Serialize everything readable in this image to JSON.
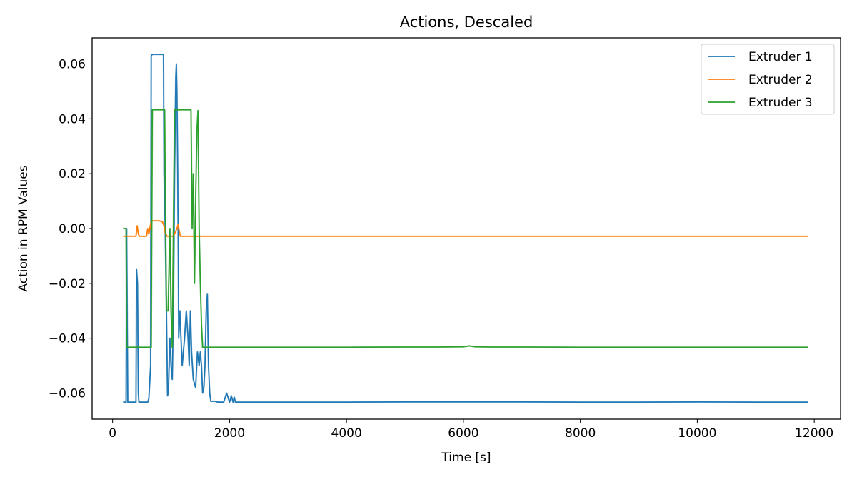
{
  "chart_data": {
    "type": "line",
    "title": "Actions, Descaled",
    "xlabel": "Time [s]",
    "ylabel": "Action in RPM Values",
    "xlim": [
      -350,
      12450
    ],
    "ylim": [
      -0.0695,
      0.0695
    ],
    "xticks": [
      0,
      2000,
      4000,
      6000,
      8000,
      10000,
      12000
    ],
    "yticks": [
      -0.06,
      -0.04,
      -0.02,
      0.0,
      0.02,
      0.04,
      0.06
    ],
    "xtick_labels": [
      "0",
      "2000",
      "4000",
      "6000",
      "8000",
      "10000",
      "12000"
    ],
    "ytick_labels": [
      "−0.06",
      "−0.04",
      "−0.02",
      "0.00",
      "0.02",
      "0.04",
      "0.06"
    ],
    "grid": false,
    "legend_position": "top-right",
    "series": [
      {
        "name": "Extruder 1",
        "color": "#1f77b4",
        "x": [
          180,
          230,
          240,
          260,
          400,
          410,
          425,
          440,
          450,
          460,
          490,
          520,
          560,
          600,
          620,
          650,
          660,
          680,
          700,
          750,
          800,
          850,
          870,
          880,
          900,
          920,
          940,
          950,
          960,
          980,
          1000,
          1020,
          1040,
          1060,
          1080,
          1090,
          1100,
          1110,
          1120,
          1130,
          1150,
          1170,
          1190,
          1210,
          1230,
          1260,
          1290,
          1310,
          1330,
          1350,
          1380,
          1420,
          1450,
          1480,
          1500,
          1520,
          1540,
          1560,
          1580,
          1600,
          1620,
          1640,
          1660,
          1680,
          1700,
          1750,
          1800,
          1850,
          1900,
          1950,
          1980,
          2000,
          2030,
          2060,
          2080,
          2100,
          2200,
          3000,
          4000,
          5000,
          6000,
          7000,
          8000,
          9000,
          10000,
          11000,
          11900
        ],
        "y": [
          -0.0633,
          -0.0633,
          0.0,
          -0.0633,
          -0.0633,
          -0.015,
          -0.02,
          -0.06,
          -0.0633,
          -0.0633,
          -0.0633,
          -0.0633,
          -0.0633,
          -0.0633,
          -0.062,
          -0.05,
          0.063,
          0.0635,
          0.0635,
          0.0635,
          0.0635,
          0.0635,
          0.0635,
          0.02,
          0.0,
          -0.03,
          -0.061,
          -0.06,
          -0.055,
          -0.04,
          -0.05,
          -0.055,
          -0.03,
          0.02,
          0.055,
          0.06,
          0.05,
          0.03,
          0.0,
          -0.04,
          -0.03,
          -0.04,
          -0.05,
          -0.045,
          -0.04,
          -0.03,
          -0.04,
          -0.05,
          -0.03,
          -0.045,
          -0.055,
          -0.058,
          -0.045,
          -0.05,
          -0.045,
          -0.05,
          -0.06,
          -0.058,
          -0.05,
          -0.03,
          -0.024,
          -0.05,
          -0.06,
          -0.063,
          -0.063,
          -0.063,
          -0.0633,
          -0.0633,
          -0.0633,
          -0.06,
          -0.062,
          -0.0633,
          -0.061,
          -0.0633,
          -0.0615,
          -0.0633,
          -0.0633,
          -0.0633,
          -0.0633,
          -0.0632,
          -0.0632,
          -0.0632,
          -0.0633,
          -0.0633,
          -0.0632,
          -0.0633,
          -0.0633
        ]
      },
      {
        "name": "Extruder 2",
        "color": "#ff7f0e",
        "x": [
          180,
          300,
          360,
          400,
          420,
          440,
          460,
          480,
          500,
          540,
          560,
          580,
          600,
          620,
          640,
          660,
          680,
          700,
          750,
          800,
          850,
          880,
          900,
          930,
          960,
          1000,
          1040,
          1080,
          1100,
          1120,
          1140,
          1160,
          1200,
          1300,
          1500,
          2000,
          4000,
          6000,
          8000,
          10000,
          11900
        ],
        "y": [
          -0.0028,
          -0.0028,
          -0.0028,
          -0.0028,
          0.001,
          -0.002,
          -0.0028,
          -0.0028,
          -0.0028,
          -0.0028,
          -0.0028,
          -0.0028,
          0.0,
          -0.002,
          0.0005,
          0.0025,
          0.0028,
          0.0028,
          0.0028,
          0.0028,
          0.0025,
          0.001,
          -0.0015,
          -0.0028,
          -0.0028,
          -0.0028,
          -0.0028,
          -0.001,
          0.0,
          0.0015,
          -0.001,
          -0.0028,
          -0.0028,
          -0.0028,
          -0.0028,
          -0.0028,
          -0.0028,
          -0.0028,
          -0.0028,
          -0.0028,
          -0.0028
        ]
      },
      {
        "name": "Extruder 3",
        "color": "#2ca02c",
        "x": [
          180,
          230,
          240,
          600,
          660,
          680,
          700,
          800,
          880,
          890,
          920,
          950,
          980,
          1000,
          1020,
          1040,
          1060,
          1080,
          1100,
          1120,
          1140,
          1160,
          1200,
          1260,
          1300,
          1340,
          1360,
          1380,
          1400,
          1420,
          1440,
          1460,
          1480,
          1500,
          1520,
          1540,
          1560,
          1580,
          1600,
          1700,
          2000,
          3000,
          4000,
          5000,
          5500,
          6000,
          6100,
          6200,
          6500,
          7000,
          8000,
          9000,
          10000,
          11000,
          11900
        ],
        "y": [
          0.0,
          0.0,
          -0.0433,
          -0.0433,
          -0.0433,
          0.0433,
          0.0433,
          0.0433,
          0.0433,
          0.0433,
          -0.03,
          -0.03,
          0.0,
          -0.03,
          -0.0433,
          0.0,
          0.0433,
          0.0433,
          0.0433,
          0.0433,
          0.0433,
          0.0433,
          0.0433,
          0.0433,
          0.0433,
          0.0433,
          0.0,
          0.02,
          -0.02,
          0.01,
          0.035,
          0.043,
          0.0,
          -0.02,
          -0.035,
          -0.0433,
          -0.0433,
          -0.0433,
          -0.0433,
          -0.0433,
          -0.0433,
          -0.0433,
          -0.0433,
          -0.0432,
          -0.0432,
          -0.0431,
          -0.0428,
          -0.0431,
          -0.0432,
          -0.0432,
          -0.0433,
          -0.0433,
          -0.0433,
          -0.0433,
          -0.0433
        ]
      }
    ]
  }
}
